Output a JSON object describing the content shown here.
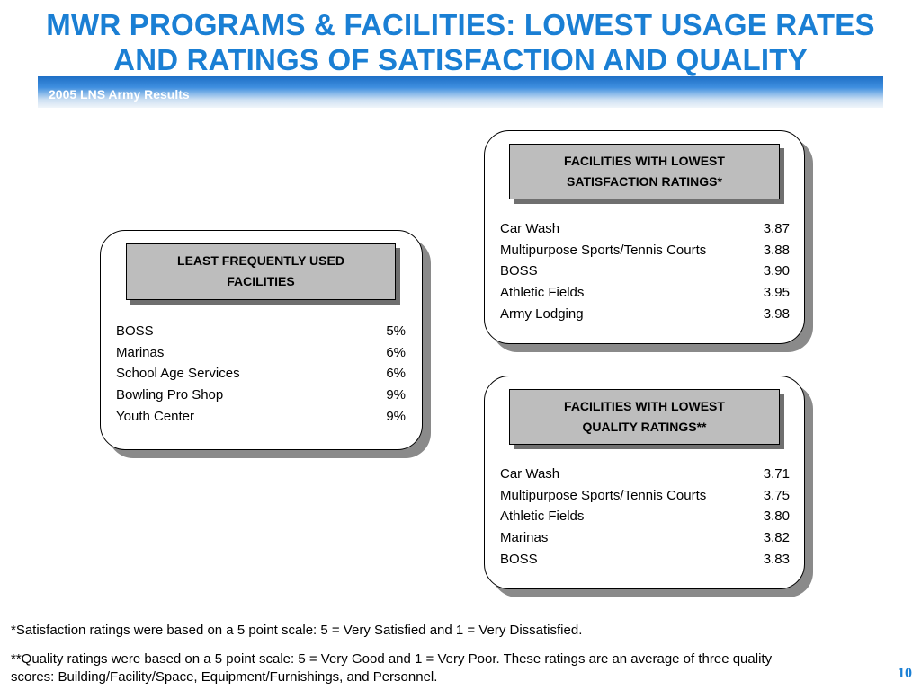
{
  "slide": {
    "title_line1": "MWR PROGRAMS & FACILITIES: LOWEST USAGE RATES",
    "title_line2": "AND RATINGS OF SATISFACTION AND QUALITY",
    "banner": "2005 LNS Army Results",
    "page_number": "10"
  },
  "least_used": {
    "header_line1": "LEAST FREQUENTLY USED",
    "header_line2": "FACILITIES",
    "items": [
      {
        "name": "BOSS",
        "value": "5%"
      },
      {
        "name": "Marinas",
        "value": "6%"
      },
      {
        "name": "School Age Services",
        "value": "6%"
      },
      {
        "name": "Bowling Pro Shop",
        "value": "9%"
      },
      {
        "name": "Youth Center",
        "value": "9%"
      }
    ]
  },
  "lowest_satisfaction": {
    "header_line1": "FACILITIES WITH LOWEST",
    "header_line2": "SATISFACTION RATINGS*",
    "items": [
      {
        "name": "Car Wash",
        "value": "3.87"
      },
      {
        "name": "Multipurpose Sports/Tennis Courts",
        "value": "3.88"
      },
      {
        "name": "BOSS",
        "value": "3.90"
      },
      {
        "name": "Athletic Fields",
        "value": "3.95"
      },
      {
        "name": "Army Lodging",
        "value": "3.98"
      }
    ]
  },
  "lowest_quality": {
    "header_line1": "FACILITIES WITH LOWEST",
    "header_line2": "QUALITY RATINGS**",
    "items": [
      {
        "name": "Car Wash",
        "value": "3.71"
      },
      {
        "name": "Multipurpose Sports/Tennis Courts",
        "value": "3.75"
      },
      {
        "name": "Athletic Fields",
        "value": "3.80"
      },
      {
        "name": "Marinas",
        "value": "3.82"
      },
      {
        "name": "BOSS",
        "value": "3.83"
      }
    ]
  },
  "footnotes": {
    "satisfaction": "*Satisfaction ratings were based on a 5 point scale: 5 = Very Satisfied and 1 = Very Dissatisfied.",
    "quality_line1": "**Quality ratings were based on a 5 point scale: 5 = Very Good and 1 = Very Poor.  These ratings are an average of three quality",
    "quality_line2": "scores: Building/Facility/Space, Equipment/Furnishings, and Personnel."
  }
}
